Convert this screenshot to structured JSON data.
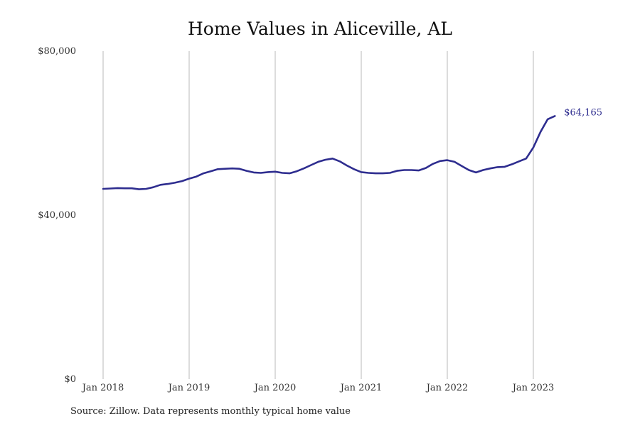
{
  "chart_data": {
    "type": "line",
    "title": "Home Values in Aliceville, AL",
    "xlabel": "",
    "ylabel": "",
    "ylim": [
      0,
      80000
    ],
    "y_ticks": [
      "$0",
      "$40,000",
      "$80,000"
    ],
    "x_ticks": [
      "Jan 2018",
      "Jan 2019",
      "Jan 2020",
      "Jan 2021",
      "Jan 2022",
      "Jan 2023"
    ],
    "grid": "vertical",
    "series_color": "#2e2d8f",
    "end_label": "$64,165",
    "series": [
      {
        "x": [
          "2018-01",
          "2018-02",
          "2018-03",
          "2018-04",
          "2018-05",
          "2018-06",
          "2018-07",
          "2018-08",
          "2018-09",
          "2018-10",
          "2018-11",
          "2018-12",
          "2019-01",
          "2019-02",
          "2019-03",
          "2019-04",
          "2019-05",
          "2019-06",
          "2019-07",
          "2019-08",
          "2019-09",
          "2019-10",
          "2019-11",
          "2019-12",
          "2020-01",
          "2020-02",
          "2020-03",
          "2020-04",
          "2020-05",
          "2020-06",
          "2020-07",
          "2020-08",
          "2020-09",
          "2020-10",
          "2020-11",
          "2020-12",
          "2021-01",
          "2021-02",
          "2021-03",
          "2021-04",
          "2021-05",
          "2021-06",
          "2021-07",
          "2021-08",
          "2021-09",
          "2021-10",
          "2021-11",
          "2021-12",
          "2022-01",
          "2022-02",
          "2022-03",
          "2022-04",
          "2022-05",
          "2022-06",
          "2022-07",
          "2022-08",
          "2022-09",
          "2022-10",
          "2022-11",
          "2022-12",
          "2023-01",
          "2023-02",
          "2023-03",
          "2023-04"
        ],
        "values": [
          46400,
          46500,
          46600,
          46550,
          46550,
          46300,
          46400,
          46800,
          47400,
          47600,
          47900,
          48300,
          48900,
          49400,
          50200,
          50700,
          51200,
          51300,
          51400,
          51300,
          50800,
          50400,
          50300,
          50500,
          50600,
          50300,
          50200,
          50700,
          51400,
          52200,
          53000,
          53500,
          53800,
          53100,
          52100,
          51200,
          50500,
          50300,
          50200,
          50200,
          50300,
          50800,
          51000,
          51000,
          50900,
          51500,
          52500,
          53200,
          53400,
          53000,
          52000,
          51000,
          50400,
          51000,
          51400,
          51700,
          51800,
          52400,
          53100,
          53800,
          56500,
          60300,
          63400,
          64165
        ]
      }
    ]
  },
  "source": "Source: Zillow. Data represents monthly typical home value"
}
